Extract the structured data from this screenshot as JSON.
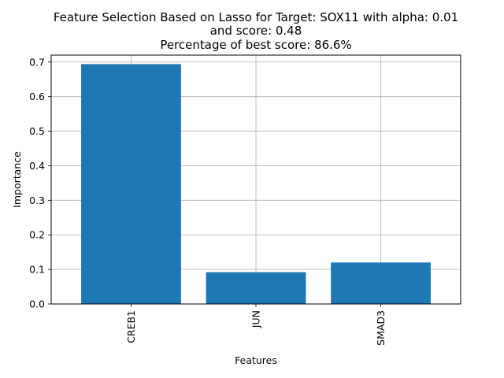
{
  "chart_data": {
    "type": "bar",
    "title_lines": [
      "Feature Selection Based on Lasso for Target: SOX11 with alpha: 0.01",
      "and score: 0.48",
      "Percentage of best score: 86.6%"
    ],
    "xlabel": "Features",
    "ylabel": "Importance",
    "categories": [
      "CREB1",
      "JUN",
      "SMAD3"
    ],
    "values": [
      0.694,
      0.092,
      0.12
    ],
    "ylim": [
      0,
      0.72
    ],
    "yticks": [
      "0.0",
      "0.1",
      "0.2",
      "0.3",
      "0.4",
      "0.5",
      "0.6",
      "0.7"
    ],
    "grid": true,
    "bar_color": "#1f77b4",
    "xtick_rotation": "vertical"
  }
}
